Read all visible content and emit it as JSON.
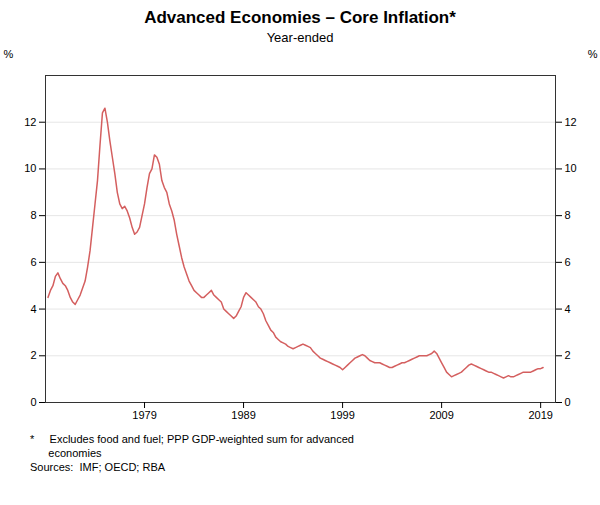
{
  "chart_data": {
    "type": "line",
    "title": "Advanced Economies – Core Inflation*",
    "subtitle": "Year-ended",
    "ylabel": "%",
    "y2label": "%",
    "footnotes": [
      "*     Excludes food and fuel; PPP GDP-weighted sum for advanced",
      "      economies",
      "Sources:  IMF; OECD; RBA"
    ],
    "color": "#d45f5f",
    "grid": "y",
    "xlim": [
      1969.0,
      2020.5
    ],
    "xticks": [
      1979,
      1989,
      1999,
      2009,
      2019
    ],
    "ylim": [
      0,
      14
    ],
    "yticks": [
      0,
      2,
      4,
      6,
      8,
      10,
      12
    ],
    "y2lim": [
      0,
      14
    ],
    "y2ticks": [
      0,
      2,
      4,
      6,
      8,
      10,
      12
    ],
    "x": [
      1969.25,
      1969.5,
      1969.75,
      1970.0,
      1970.25,
      1970.5,
      1970.75,
      1971.0,
      1971.25,
      1971.5,
      1971.75,
      1972.0,
      1972.25,
      1972.5,
      1972.75,
      1973.0,
      1973.25,
      1973.5,
      1973.75,
      1974.0,
      1974.25,
      1974.5,
      1974.75,
      1975.0,
      1975.25,
      1975.5,
      1975.75,
      1976.0,
      1976.25,
      1976.5,
      1976.75,
      1977.0,
      1977.25,
      1977.5,
      1977.75,
      1978.0,
      1978.25,
      1978.5,
      1978.75,
      1979.0,
      1979.25,
      1979.5,
      1979.75,
      1980.0,
      1980.25,
      1980.5,
      1980.75,
      1981.0,
      1981.25,
      1981.5,
      1981.75,
      1982.0,
      1982.25,
      1982.5,
      1982.75,
      1983.0,
      1983.25,
      1983.5,
      1983.75,
      1984.0,
      1984.25,
      1984.5,
      1984.75,
      1985.0,
      1985.25,
      1985.5,
      1985.75,
      1986.0,
      1986.25,
      1986.5,
      1986.75,
      1987.0,
      1987.25,
      1987.5,
      1987.75,
      1988.0,
      1988.25,
      1988.5,
      1988.75,
      1989.0,
      1989.25,
      1989.5,
      1989.75,
      1990.0,
      1990.25,
      1990.5,
      1990.75,
      1991.0,
      1991.25,
      1991.5,
      1991.75,
      1992.0,
      1992.25,
      1992.5,
      1992.75,
      1993.0,
      1993.25,
      1993.5,
      1993.75,
      1994.0,
      1994.25,
      1994.5,
      1994.75,
      1995.0,
      1995.25,
      1995.5,
      1995.75,
      1996.0,
      1996.25,
      1996.5,
      1996.75,
      1997.0,
      1997.25,
      1997.5,
      1997.75,
      1998.0,
      1998.25,
      1998.5,
      1998.75,
      1999.0,
      1999.25,
      1999.5,
      1999.75,
      2000.0,
      2000.25,
      2000.5,
      2000.75,
      2001.0,
      2001.25,
      2001.5,
      2001.75,
      2002.0,
      2002.25,
      2002.5,
      2002.75,
      2003.0,
      2003.25,
      2003.5,
      2003.75,
      2004.0,
      2004.25,
      2004.5,
      2004.75,
      2005.0,
      2005.25,
      2005.5,
      2005.75,
      2006.0,
      2006.25,
      2006.5,
      2006.75,
      2007.0,
      2007.25,
      2007.5,
      2007.75,
      2008.0,
      2008.25,
      2008.5,
      2008.75,
      2009.0,
      2009.25,
      2009.5,
      2009.75,
      2010.0,
      2010.25,
      2010.5,
      2010.75,
      2011.0,
      2011.25,
      2011.5,
      2011.75,
      2012.0,
      2012.25,
      2012.5,
      2012.75,
      2013.0,
      2013.25,
      2013.5,
      2013.75,
      2014.0,
      2014.25,
      2014.5,
      2014.75,
      2015.0,
      2015.25,
      2015.5,
      2015.75,
      2016.0,
      2016.25,
      2016.5,
      2016.75,
      2017.0,
      2017.25,
      2017.5,
      2017.75,
      2018.0,
      2018.25,
      2018.5,
      2018.75,
      2019.0,
      2019.25
    ],
    "values": [
      4.5,
      4.8,
      5.0,
      5.4,
      5.55,
      5.3,
      5.1,
      5.0,
      4.8,
      4.5,
      4.3,
      4.2,
      4.4,
      4.6,
      4.9,
      5.2,
      5.8,
      6.5,
      7.5,
      8.5,
      9.5,
      11.0,
      12.4,
      12.6,
      12.0,
      11.2,
      10.5,
      9.8,
      9.0,
      8.5,
      8.3,
      8.4,
      8.2,
      7.9,
      7.5,
      7.2,
      7.3,
      7.5,
      8.0,
      8.5,
      9.2,
      9.8,
      10.0,
      10.6,
      10.5,
      10.2,
      9.5,
      9.2,
      9.0,
      8.5,
      8.2,
      7.8,
      7.2,
      6.7,
      6.2,
      5.8,
      5.5,
      5.2,
      5.0,
      4.8,
      4.7,
      4.6,
      4.5,
      4.5,
      4.6,
      4.7,
      4.8,
      4.6,
      4.5,
      4.4,
      4.3,
      4.0,
      3.9,
      3.8,
      3.7,
      3.6,
      3.7,
      3.9,
      4.1,
      4.5,
      4.7,
      4.6,
      4.5,
      4.4,
      4.3,
      4.1,
      4.0,
      3.8,
      3.5,
      3.3,
      3.1,
      3.0,
      2.8,
      2.7,
      2.6,
      2.55,
      2.5,
      2.4,
      2.35,
      2.3,
      2.35,
      2.4,
      2.45,
      2.5,
      2.45,
      2.4,
      2.35,
      2.2,
      2.1,
      2.0,
      1.9,
      1.85,
      1.8,
      1.75,
      1.7,
      1.65,
      1.6,
      1.55,
      1.5,
      1.4,
      1.5,
      1.6,
      1.7,
      1.8,
      1.9,
      1.95,
      2.0,
      2.05,
      2.0,
      1.9,
      1.8,
      1.75,
      1.7,
      1.7,
      1.7,
      1.65,
      1.6,
      1.55,
      1.5,
      1.5,
      1.55,
      1.6,
      1.65,
      1.7,
      1.7,
      1.75,
      1.8,
      1.85,
      1.9,
      1.95,
      2.0,
      2.0,
      2.0,
      2.0,
      2.05,
      2.1,
      2.2,
      2.1,
      1.9,
      1.7,
      1.5,
      1.3,
      1.2,
      1.1,
      1.15,
      1.2,
      1.25,
      1.3,
      1.4,
      1.5,
      1.6,
      1.65,
      1.6,
      1.55,
      1.5,
      1.45,
      1.4,
      1.35,
      1.3,
      1.3,
      1.25,
      1.2,
      1.15,
      1.1,
      1.05,
      1.1,
      1.15,
      1.1,
      1.1,
      1.15,
      1.2,
      1.25,
      1.3,
      1.3,
      1.3,
      1.3,
      1.35,
      1.4,
      1.45,
      1.45,
      1.5
    ]
  }
}
